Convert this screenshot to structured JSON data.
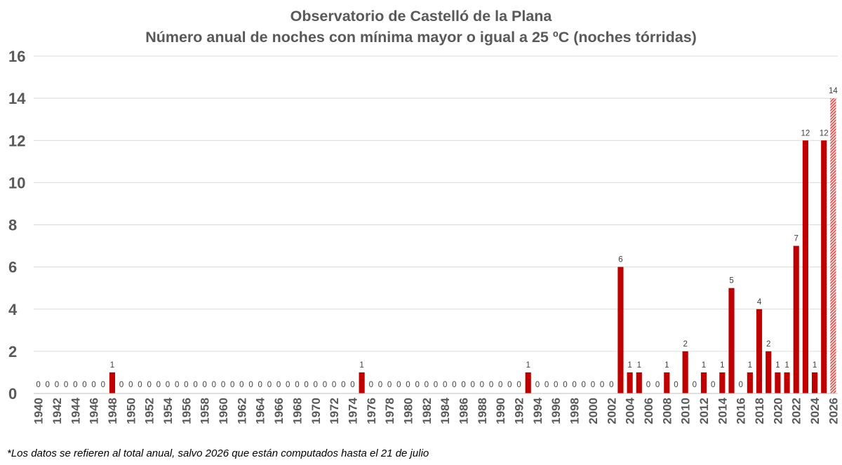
{
  "chart_data": {
    "type": "bar",
    "title": "Observatorio de Castelló de la Plana",
    "subtitle": "Número anual de noches con mínima mayor o igual a 25 ºC (noches tórridas)",
    "footnote": "*Los datos se refieren al total anual, salvo 2026 que están computados hasta el 21 de julio",
    "x_start": 1940,
    "x_end": 2026,
    "x_tick_step": 2,
    "ylim": [
      0,
      16
    ],
    "y_ticks": [
      0,
      2,
      4,
      6,
      8,
      10,
      12,
      14,
      16
    ],
    "grid": true,
    "bar_color": "#c00000",
    "partial_year": 2026,
    "values": [
      0,
      0,
      0,
      0,
      0,
      0,
      0,
      0,
      1,
      0,
      0,
      0,
      0,
      0,
      0,
      0,
      0,
      0,
      0,
      0,
      0,
      0,
      0,
      0,
      0,
      0,
      0,
      0,
      0,
      0,
      0,
      0,
      0,
      0,
      0,
      1,
      0,
      0,
      0,
      0,
      0,
      0,
      0,
      0,
      0,
      0,
      0,
      0,
      0,
      0,
      0,
      0,
      0,
      1,
      0,
      0,
      0,
      0,
      0,
      0,
      0,
      0,
      0,
      6,
      1,
      1,
      0,
      0,
      1,
      0,
      2,
      0,
      1,
      0,
      1,
      5,
      0,
      1,
      4,
      2,
      1,
      1,
      7,
      12,
      1,
      12,
      14
    ]
  }
}
